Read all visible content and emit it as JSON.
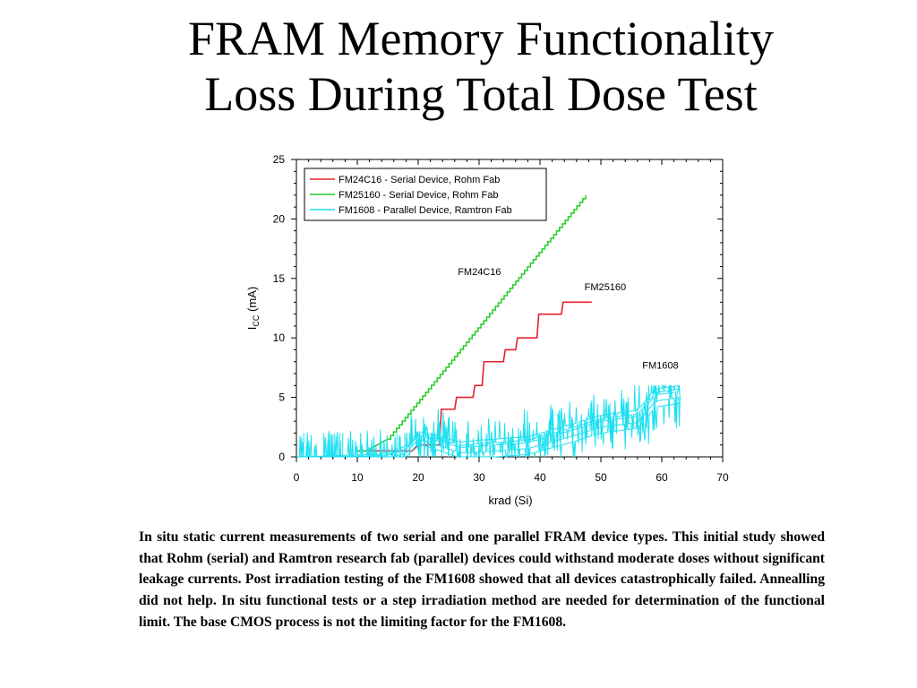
{
  "slide": {
    "title_line1": "FRAM Memory Functionality",
    "title_line2": "Loss During Total Dose Test",
    "caption": "In situ static current measurements of two serial and one parallel FRAM device types.  This initial study showed that Rohm (serial) and Ramtron research fab (parallel) devices could withstand moderate doses without significant leakage currents.  Post irradiation testing of the FM1608 showed that all devices catastrophically failed.  Annealling did not help.  In situ functional tests or a step irradiation method are needed for determination of the functional limit.  The base CMOS process is not the limiting factor for the FM1608."
  },
  "chart_data": {
    "type": "line",
    "xlabel": "krad (Si)",
    "ylabel_main": "I",
    "ylabel_sub": "CC",
    "ylabel_unit": " (mA)",
    "xlim": [
      0,
      70
    ],
    "ylim": [
      0,
      25
    ],
    "xticks": [
      0,
      10,
      20,
      30,
      40,
      50,
      60,
      70
    ],
    "yticks": [
      0,
      5,
      10,
      15,
      20,
      25
    ],
    "xtick_labels": [
      "0",
      "10",
      "20",
      "30",
      "40",
      "50",
      "60",
      "70"
    ],
    "ytick_labels": [
      "0",
      "5",
      "10",
      "15",
      "20",
      "25"
    ],
    "grid": false,
    "legend_position": "top-left",
    "series": [
      {
        "name": "FM24C16 - Serial Device, Rohm Fab",
        "color": "#e8202a",
        "shape": "step",
        "points": [
          [
            10,
            0.5
          ],
          [
            19,
            0.5
          ],
          [
            20,
            1
          ],
          [
            23.5,
            1
          ],
          [
            23.8,
            4
          ],
          [
            26,
            4
          ],
          [
            26.3,
            5
          ],
          [
            29,
            5
          ],
          [
            29.3,
            6
          ],
          [
            30.5,
            6
          ],
          [
            30.8,
            8
          ],
          [
            34,
            8
          ],
          [
            34.3,
            9
          ],
          [
            36,
            9
          ],
          [
            36.3,
            10
          ],
          [
            39.5,
            10
          ],
          [
            39.8,
            12
          ],
          [
            43.5,
            12
          ],
          [
            43.8,
            13
          ],
          [
            48.5,
            13
          ]
        ]
      },
      {
        "name": "FM25160 - Serial Device, Rohm Fab",
        "color": "#22cc22",
        "shape": "staircase",
        "points": [
          [
            10,
            0.5
          ],
          [
            11.5,
            0.5
          ],
          [
            15,
            1.5
          ],
          [
            47.5,
            22
          ]
        ]
      },
      {
        "name": "FM1608 - Parallel Device, Ramtron Fab",
        "color": "#1ee0f0",
        "shape": "noisy",
        "points": [
          [
            0,
            0
          ],
          [
            14,
            0
          ],
          [
            18,
            0.6
          ],
          [
            20,
            1.8
          ],
          [
            27,
            0.8
          ],
          [
            30,
            0.9
          ],
          [
            38,
            1.2
          ],
          [
            45,
            2.2
          ],
          [
            50,
            3.0
          ],
          [
            56,
            3.4
          ],
          [
            59,
            5.2
          ],
          [
            63,
            5.5
          ]
        ]
      }
    ],
    "annotations": [
      {
        "text": "FM24C16",
        "x": 26.5,
        "y": 15.3
      },
      {
        "text": "FM25160",
        "x": 47.3,
        "y": 14.0
      },
      {
        "text": "FM1608",
        "x": 56.8,
        "y": 7.4
      }
    ]
  }
}
